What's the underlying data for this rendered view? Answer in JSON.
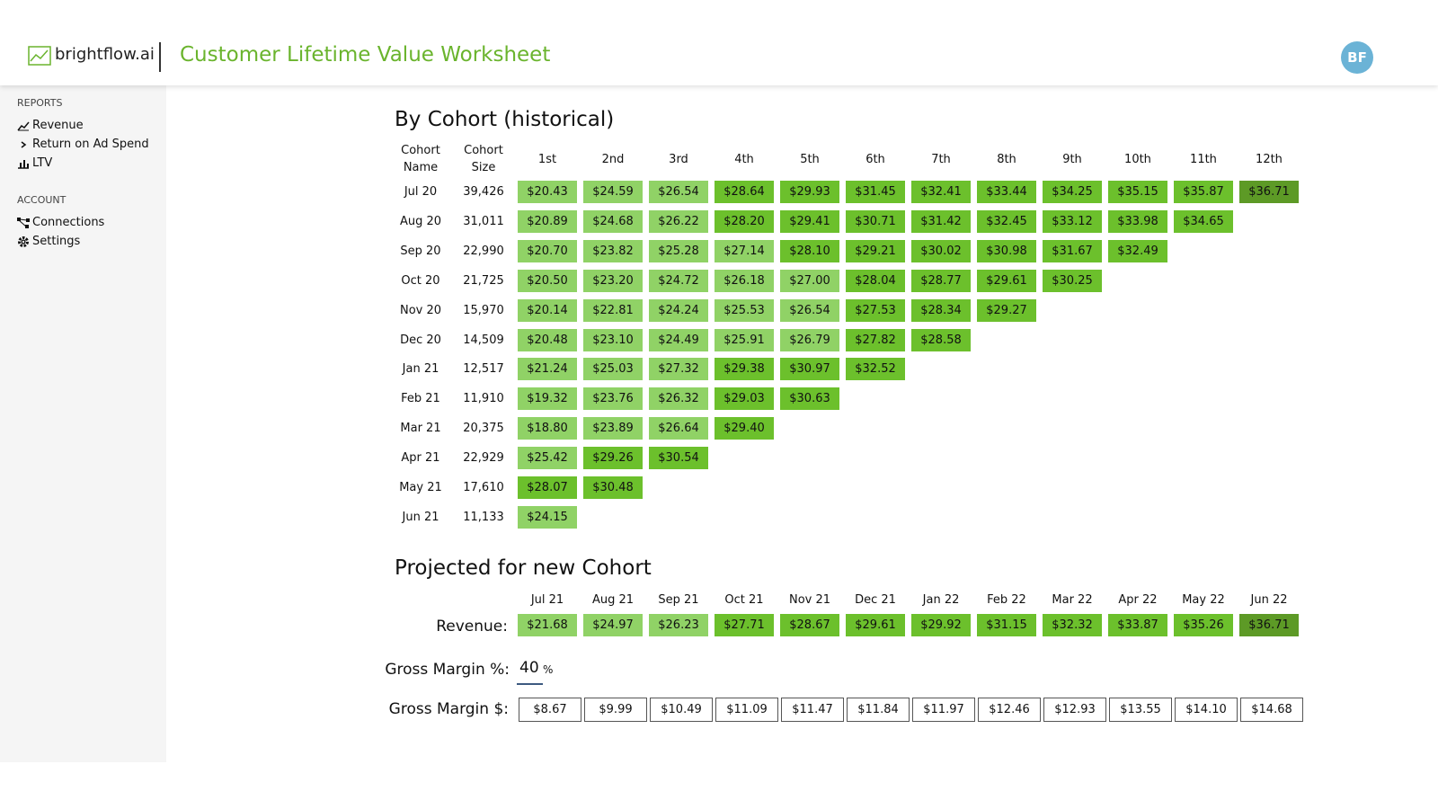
{
  "header": {
    "logo": "brightflow.ai",
    "title": "Customer Lifetime Value Worksheet",
    "avatar": "BF"
  },
  "sidebar": {
    "sections": [
      {
        "heading": "REPORTS",
        "items": [
          "Revenue",
          "Return on Ad Spend",
          "LTV"
        ]
      },
      {
        "heading": "ACCOUNT",
        "items": [
          "Connections",
          "Settings"
        ]
      }
    ]
  },
  "cohort": {
    "title": "By Cohort (historical)",
    "headers": [
      "Cohort Name",
      "Cohort Size",
      "1st",
      "2nd",
      "3rd",
      "4th",
      "5th",
      "6th",
      "7th",
      "8th",
      "9th",
      "10th",
      "11th",
      "12th"
    ],
    "rows": [
      {
        "name": "Jul 20",
        "size": "39,426",
        "values": [
          "$20.43",
          "$24.59",
          "$26.54",
          "$28.64",
          "$29.93",
          "$31.45",
          "$32.41",
          "$33.44",
          "$34.25",
          "$35.15",
          "$35.87",
          "$36.71"
        ]
      },
      {
        "name": "Aug 20",
        "size": "31,011",
        "values": [
          "$20.89",
          "$24.68",
          "$26.22",
          "$28.20",
          "$29.41",
          "$30.71",
          "$31.42",
          "$32.45",
          "$33.12",
          "$33.98",
          "$34.65"
        ]
      },
      {
        "name": "Sep 20",
        "size": "22,990",
        "values": [
          "$20.70",
          "$23.82",
          "$25.28",
          "$27.14",
          "$28.10",
          "$29.21",
          "$30.02",
          "$30.98",
          "$31.67",
          "$32.49"
        ]
      },
      {
        "name": "Oct 20",
        "size": "21,725",
        "values": [
          "$20.50",
          "$23.20",
          "$24.72",
          "$26.18",
          "$27.00",
          "$28.04",
          "$28.77",
          "$29.61",
          "$30.25"
        ]
      },
      {
        "name": "Nov 20",
        "size": "15,970",
        "values": [
          "$20.14",
          "$22.81",
          "$24.24",
          "$25.53",
          "$26.54",
          "$27.53",
          "$28.34",
          "$29.27"
        ]
      },
      {
        "name": "Dec 20",
        "size": "14,509",
        "values": [
          "$20.48",
          "$23.10",
          "$24.49",
          "$25.91",
          "$26.79",
          "$27.82",
          "$28.58"
        ]
      },
      {
        "name": "Jan 21",
        "size": "12,517",
        "values": [
          "$21.24",
          "$25.03",
          "$27.32",
          "$29.38",
          "$30.97",
          "$32.52"
        ]
      },
      {
        "name": "Feb 21",
        "size": "11,910",
        "values": [
          "$19.32",
          "$23.76",
          "$26.32",
          "$29.03",
          "$30.63"
        ]
      },
      {
        "name": "Mar 21",
        "size": "20,375",
        "values": [
          "$18.80",
          "$23.89",
          "$26.64",
          "$29.40"
        ]
      },
      {
        "name": "Apr 21",
        "size": "22,929",
        "values": [
          "$25.42",
          "$29.26",
          "$30.54"
        ]
      },
      {
        "name": "May 21",
        "size": "17,610",
        "values": [
          "$28.07",
          "$30.48"
        ]
      },
      {
        "name": "Jun 21",
        "size": "11,133",
        "values": [
          "$24.15"
        ]
      }
    ]
  },
  "projected": {
    "title": "Projected for new Cohort",
    "months": [
      "Jul 21",
      "Aug 21",
      "Sep 21",
      "Oct 21",
      "Nov 21",
      "Dec 21",
      "Jan 22",
      "Feb 22",
      "Mar 22",
      "Apr 22",
      "May 22",
      "Jun 22"
    ],
    "revenue_label": "Revenue:",
    "revenue": [
      "$21.68",
      "$24.97",
      "$26.23",
      "$27.71",
      "$28.67",
      "$29.61",
      "$29.92",
      "$31.15",
      "$32.32",
      "$33.87",
      "$35.26",
      "$36.71"
    ],
    "margin_pct_label": "Gross Margin %:",
    "margin_pct": "40",
    "margin_pct_unit": "%",
    "margin_label": "Gross Margin $:",
    "margin": [
      "$8.67",
      "$9.99",
      "$10.49",
      "$11.09",
      "$11.47",
      "$11.84",
      "$11.97",
      "$12.46",
      "$12.93",
      "$13.55",
      "$14.10",
      "$14.68"
    ]
  }
}
